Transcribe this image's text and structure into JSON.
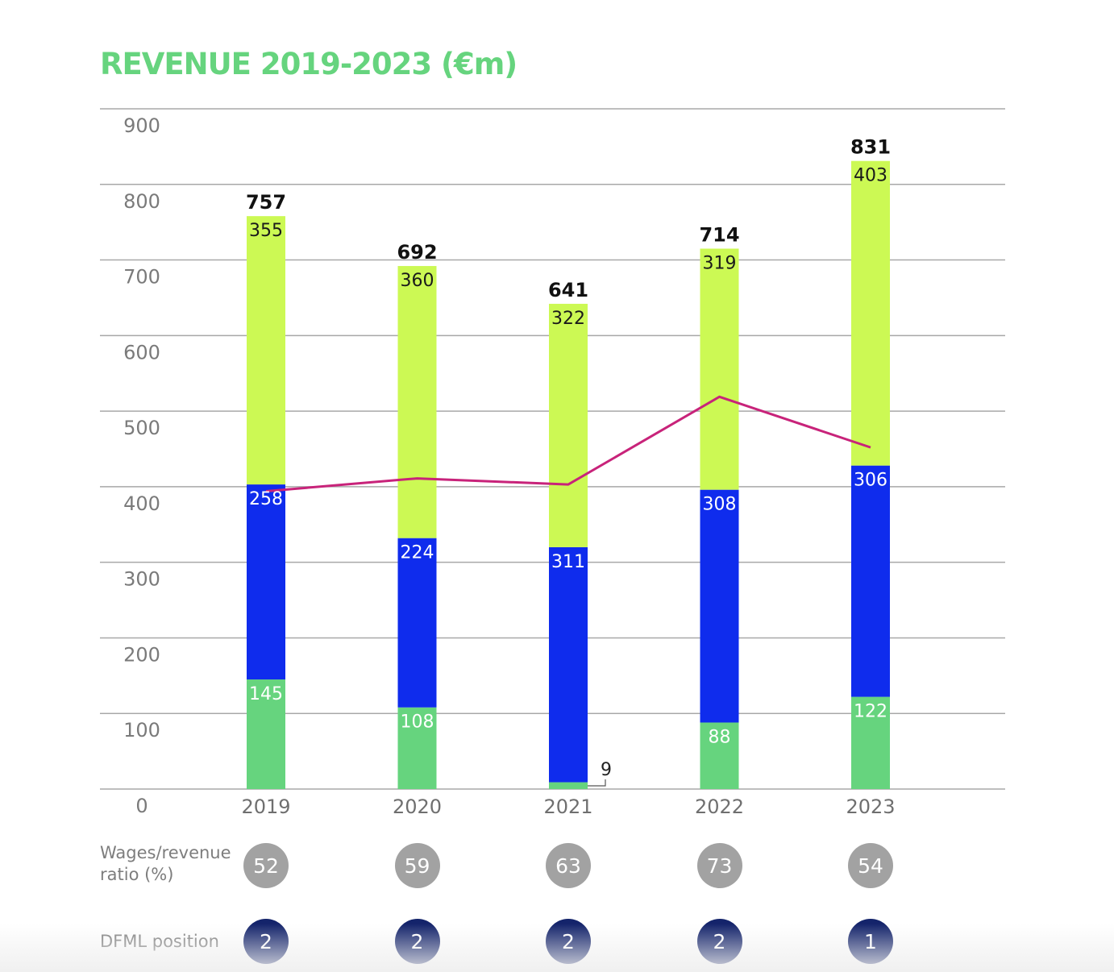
{
  "title": "REVENUE 2019-2023 (€m)",
  "colors": {
    "title": "#66d47e",
    "segment_bottom": "#66d47e",
    "segment_middle": "#0f2ced",
    "segment_top": "#ccf954",
    "line": "#c8237a",
    "ratio_badge": "#a2a2a2",
    "position_badge": "#14246b",
    "gridline": "#a8a8a8"
  },
  "chart_data": {
    "type": "bar",
    "stacked": true,
    "title": "REVENUE 2019-2023 (€m)",
    "xlabel": "",
    "ylabel": "",
    "categories": [
      "2019",
      "2020",
      "2021",
      "2022",
      "2023"
    ],
    "ylim": [
      0,
      900
    ],
    "yticks": [
      0,
      100,
      200,
      300,
      400,
      500,
      600,
      700,
      800,
      900
    ],
    "grid": true,
    "legend": "none",
    "series": [
      {
        "name": "bottom",
        "values": [
          145,
          108,
          9,
          88,
          122
        ]
      },
      {
        "name": "middle",
        "values": [
          258,
          224,
          311,
          308,
          306
        ]
      },
      {
        "name": "top",
        "values": [
          355,
          360,
          322,
          319,
          403
        ]
      }
    ],
    "totals": [
      757,
      692,
      641,
      714,
      831
    ],
    "line_series": {
      "name": "trend line",
      "values": [
        394,
        411,
        403,
        519,
        452
      ]
    },
    "annotations": [
      {
        "category": "2021",
        "series": "bottom",
        "text": "9",
        "callout": true
      }
    ]
  },
  "rows": {
    "ratio": {
      "label": "Wages/revenue\nratio (%)",
      "values": [
        "52",
        "59",
        "63",
        "73",
        "54"
      ]
    },
    "position": {
      "label": "DFML position",
      "values": [
        "2",
        "2",
        "2",
        "2",
        "1"
      ]
    }
  }
}
